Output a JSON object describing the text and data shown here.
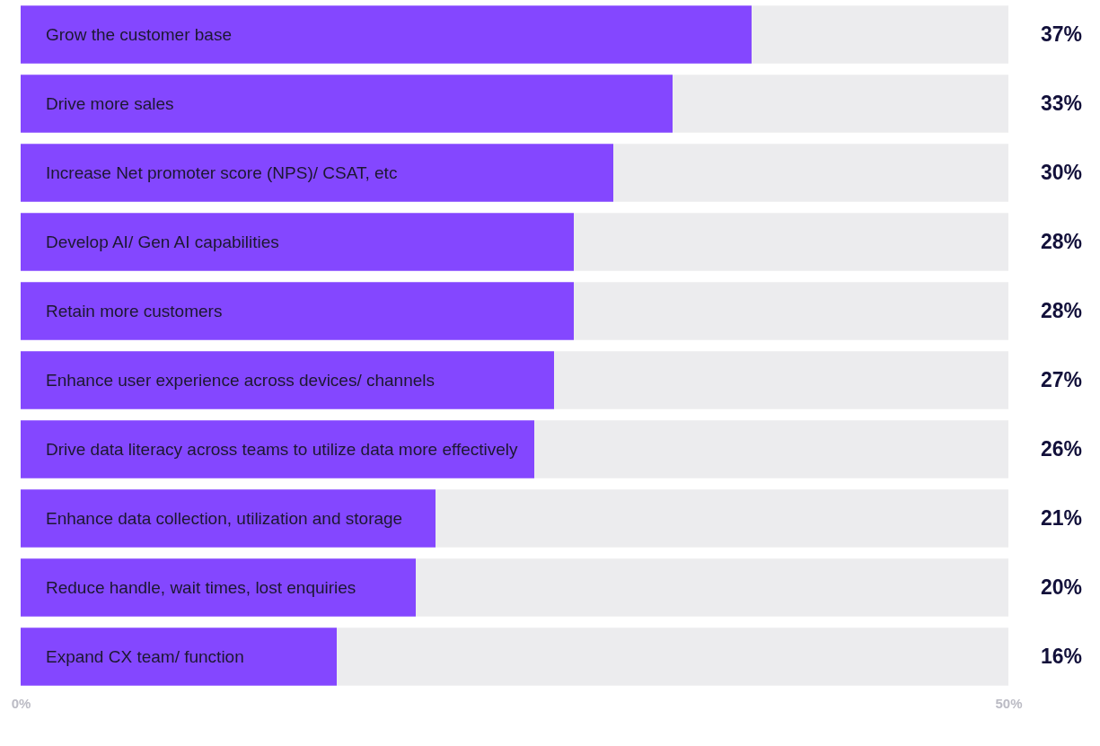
{
  "chart_data": {
    "type": "bar",
    "orientation": "horizontal",
    "stacked": true,
    "categories": [
      "Grow the customer base",
      "Drive more sales",
      "Increase Net promoter score (NPS)/ CSAT, etc",
      "Develop AI/ Gen AI capabilities",
      "Retain more customers",
      "Enhance user experience across devices/ channels",
      "Drive data literacy across teams to utilize data more effectively",
      "Enhance data collection, utilization and storage",
      "Reduce handle, wait times, lost enquiries",
      "Expand CX team/ function"
    ],
    "series": [
      {
        "color": "#8447ff",
        "values": [
          37,
          33,
          30,
          28,
          28,
          27,
          26,
          21,
          20,
          16
        ],
        "value_labels": [
          "37%",
          "33%",
          "30%",
          "28%",
          "28%",
          "27%",
          "26%",
          "21%",
          "20%",
          "16%"
        ]
      },
      {
        "color": "#ececee",
        "values": [
          13,
          17,
          20,
          22,
          22,
          23,
          24,
          29,
          30,
          34
        ]
      }
    ],
    "xlim": [
      0,
      50
    ],
    "xticks": [
      {
        "value": 0,
        "label": "0%"
      },
      {
        "value": 50,
        "label": "50%"
      }
    ]
  }
}
